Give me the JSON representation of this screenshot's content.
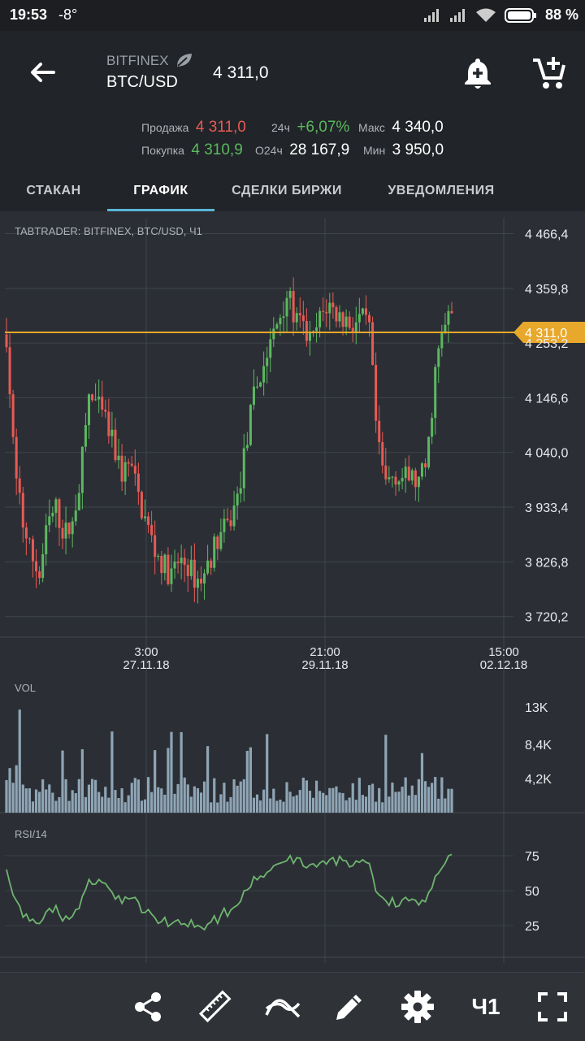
{
  "status_bar": {
    "time": "19:53",
    "temperature": "-8°",
    "battery": "88 %"
  },
  "header": {
    "exchange": "BITFINEX",
    "pair": "BTC/USD",
    "price": "4 311,0",
    "icons": [
      "back-arrow-icon",
      "add-alert-icon",
      "add-to-cart-icon"
    ]
  },
  "stats": {
    "sell_label": "Продажа",
    "sell_value": "4 311,0",
    "buy_label": "Покупка",
    "buy_value": "4 310,9",
    "change_label": "24ч",
    "change_value": "+6,07%",
    "volume_label": "O24ч",
    "volume_value": "28 167,9",
    "max_label": "Макс",
    "max_value": "4 340,0",
    "min_label": "Мин",
    "min_value": "3 950,0"
  },
  "tabs": [
    {
      "label": "СТАКАН",
      "active": false
    },
    {
      "label": "ГРАФИК",
      "active": true
    },
    {
      "label": "СДЕЛКИ БИРЖИ",
      "active": false
    },
    {
      "label": "УВЕДОМЛЕНИЯ",
      "active": false
    }
  ],
  "chart": {
    "title": "TABTRADER: BITFINEX, BTC/USD, Ч1",
    "current_price": "4 311,0",
    "price_axis": [
      "4 466,4",
      "4 359,8",
      "4 253,2",
      "4 146,6",
      "4 040,0",
      "3 933,4",
      "3 826,8",
      "3 720,2"
    ],
    "time_axis": [
      {
        "time": "3:00",
        "date": "27.11.18"
      },
      {
        "time": "21:00",
        "date": "29.11.18"
      },
      {
        "time": "15:00",
        "date": "02.12.18"
      }
    ],
    "vol_label": "VOL",
    "vol_axis": [
      "13K",
      "8,4K",
      "4,2K"
    ],
    "rsi_label": "RSI/14",
    "rsi_axis": [
      "75",
      "50",
      "25"
    ]
  },
  "chart_data": {
    "type": "candlestick",
    "title": "TABTRADER: BITFINEX, BTC/USD, Ч1",
    "close_path": [
      4270,
      4000,
      3900,
      3840,
      3800,
      3900,
      3930,
      3880,
      3900,
      4000,
      4150,
      4130,
      4100,
      4050,
      4000,
      4020,
      3950,
      3900,
      3850,
      3820,
      3800,
      3830,
      3820,
      3790,
      3800,
      3850,
      3880,
      3900,
      3950,
      4050,
      4150,
      4200,
      4250,
      4300,
      4350,
      4300,
      4280,
      4250,
      4300,
      4330,
      4310,
      4300,
      4290,
      4300,
      4280,
      4050,
      3980,
      4000,
      3990,
      3990,
      3980,
      4020,
      4200,
      4280,
      4311
    ],
    "ylim": [
      3680,
      4510
    ],
    "volume_ylim": [
      0,
      15000
    ],
    "rsi_ylim": [
      0,
      100
    ]
  },
  "toolbar": [
    {
      "name": "share-icon"
    },
    {
      "name": "ruler-icon"
    },
    {
      "name": "indicators-icon"
    },
    {
      "name": "draw-pencil-icon"
    },
    {
      "name": "settings-gear-icon"
    },
    {
      "name": "timeframe-button",
      "label": "Ч1"
    },
    {
      "name": "fullscreen-icon"
    }
  ],
  "colors": {
    "up": "#5cb860",
    "down": "#e85a54",
    "price_line": "#e8a82b",
    "volume": "#8fa5b5",
    "rsi": "#6fb46f",
    "accent": "#5ab5d6"
  }
}
